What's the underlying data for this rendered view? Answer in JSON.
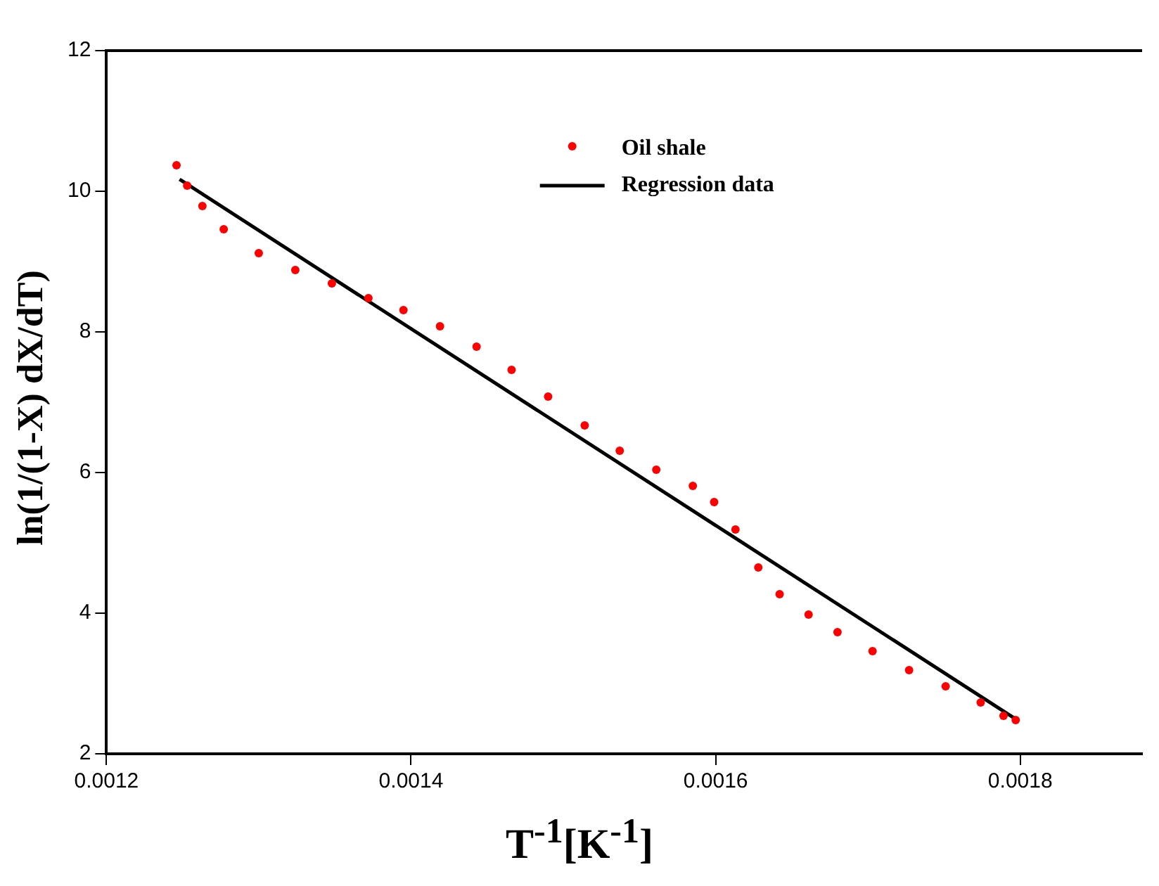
{
  "chart_data": {
    "type": "scatter",
    "xlabel": "T$^{-1}$[K$^{-1}$]",
    "ylabel": "ln(1/(1-X) dX/dT)",
    "xlim": [
      0.0012,
      0.00188
    ],
    "xticks": [
      0.0012,
      0.0014,
      0.0016,
      0.0018
    ],
    "ylim": [
      2,
      12
    ],
    "yticks": [
      2,
      4,
      6,
      8,
      10,
      12
    ],
    "grid": false,
    "legend": "top",
    "marker": "circle",
    "series": [
      {
        "name": "Oil shale",
        "color": "#ff0000",
        "x": [
          0.001246,
          0.001253,
          0.001263,
          0.001277,
          0.0013,
          0.001324,
          0.001348,
          0.001372,
          0.001395,
          0.001419,
          0.001443,
          0.001466,
          0.00149,
          0.001514,
          0.001537,
          0.001561,
          0.001585,
          0.001599,
          0.001613,
          0.001628,
          0.001642,
          0.001661,
          0.00168,
          0.001703,
          0.001727,
          0.001751,
          0.001774,
          0.001789,
          0.001797
        ],
        "values": [
          10.37,
          10.08,
          9.79,
          9.46,
          9.12,
          8.88,
          8.69,
          8.48,
          8.31,
          8.08,
          7.79,
          7.46,
          7.08,
          6.67,
          6.31,
          6.04,
          5.81,
          5.58,
          5.19,
          4.65,
          4.27,
          3.98,
          3.73,
          3.46,
          3.19,
          2.96,
          2.73,
          2.54,
          2.48
        ]
      },
      {
        "name": "Regression data",
        "type": "line",
        "color": "#000000",
        "marker": "none",
        "line_style": "solid",
        "x": [
          0.001248,
          0.001798
        ],
        "values": [
          10.17,
          2.48
        ]
      }
    ]
  }
}
